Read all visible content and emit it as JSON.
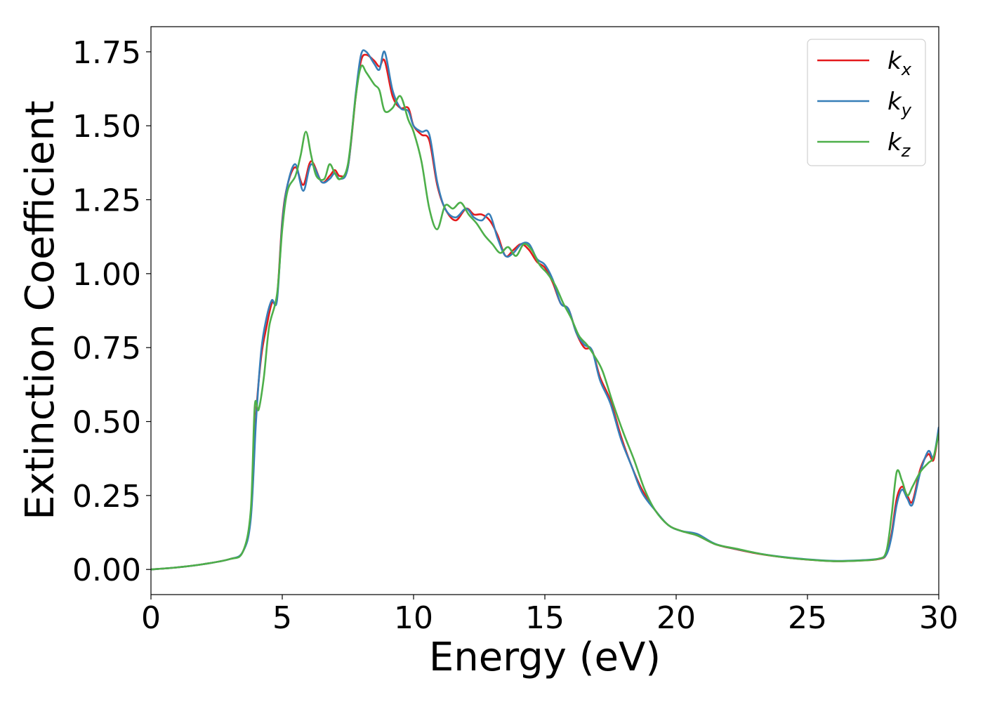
{
  "chart_data": {
    "type": "line",
    "title": "",
    "xlabel": "Energy (eV)",
    "ylabel": "Extinction Coefficient",
    "xlim": [
      0,
      30
    ],
    "ylim": [
      -0.085,
      1.835
    ],
    "xticks": [
      0,
      5,
      10,
      15,
      20,
      25,
      30
    ],
    "yticks": [
      0.0,
      0.25,
      0.5,
      0.75,
      1.0,
      1.25,
      1.5,
      1.75
    ],
    "xtick_labels": [
      "0",
      "5",
      "10",
      "15",
      "20",
      "25",
      "30"
    ],
    "ytick_labels": [
      "0.00",
      "0.25",
      "0.50",
      "0.75",
      "1.00",
      "1.25",
      "1.50",
      "1.75"
    ],
    "grid": false,
    "legend_position": "top-right",
    "series": [
      {
        "name": "k_x",
        "label_main": "k",
        "label_sub": "x",
        "color": "#e41a1c",
        "x": [
          0,
          1,
          2,
          3,
          3.5,
          3.8,
          4.0,
          4.2,
          4.4,
          4.6,
          4.8,
          5.0,
          5.2,
          5.5,
          5.8,
          6.1,
          6.5,
          6.8,
          7.0,
          7.2,
          7.5,
          7.8,
          8.0,
          8.2,
          8.5,
          8.7,
          8.9,
          9.2,
          9.5,
          9.8,
          10.0,
          10.3,
          10.6,
          10.9,
          11.2,
          11.6,
          12.0,
          12.3,
          12.6,
          12.9,
          13.2,
          13.5,
          13.8,
          14.1,
          14.4,
          14.7,
          15.0,
          15.3,
          15.6,
          15.9,
          16.2,
          16.5,
          16.8,
          17.1,
          17.5,
          17.9,
          18.3,
          18.7,
          19.2,
          19.7,
          20.2,
          20.8,
          21.5,
          22.3,
          23.2,
          24.2,
          25.2,
          26.0,
          27.0,
          27.7,
          28.0,
          28.2,
          28.4,
          28.6,
          28.8,
          29.0,
          29.3,
          29.6,
          29.8,
          30.0
        ],
        "y": [
          0.0,
          0.007,
          0.018,
          0.035,
          0.06,
          0.18,
          0.52,
          0.72,
          0.82,
          0.9,
          0.92,
          1.18,
          1.3,
          1.36,
          1.3,
          1.38,
          1.31,
          1.33,
          1.35,
          1.33,
          1.36,
          1.6,
          1.72,
          1.74,
          1.72,
          1.7,
          1.72,
          1.6,
          1.56,
          1.56,
          1.5,
          1.47,
          1.45,
          1.3,
          1.22,
          1.18,
          1.22,
          1.2,
          1.2,
          1.18,
          1.13,
          1.06,
          1.08,
          1.1,
          1.08,
          1.04,
          1.02,
          0.97,
          0.9,
          0.88,
          0.8,
          0.75,
          0.74,
          0.65,
          0.57,
          0.45,
          0.35,
          0.27,
          0.2,
          0.15,
          0.13,
          0.115,
          0.085,
          0.068,
          0.052,
          0.04,
          0.032,
          0.028,
          0.03,
          0.035,
          0.05,
          0.12,
          0.24,
          0.28,
          0.25,
          0.23,
          0.34,
          0.39,
          0.37,
          0.47
        ]
      },
      {
        "name": "k_y",
        "label_main": "k",
        "label_sub": "y",
        "color": "#377eb8",
        "x": [
          0,
          1,
          2,
          3,
          3.5,
          3.8,
          4.0,
          4.2,
          4.4,
          4.6,
          4.8,
          5.0,
          5.2,
          5.5,
          5.8,
          6.1,
          6.5,
          6.8,
          7.0,
          7.2,
          7.5,
          7.8,
          8.0,
          8.2,
          8.5,
          8.7,
          8.9,
          9.2,
          9.5,
          9.8,
          10.0,
          10.3,
          10.6,
          10.9,
          11.2,
          11.6,
          12.0,
          12.3,
          12.6,
          12.9,
          13.2,
          13.5,
          13.8,
          14.1,
          14.4,
          14.7,
          15.0,
          15.3,
          15.6,
          15.9,
          16.2,
          16.5,
          16.8,
          17.1,
          17.5,
          17.9,
          18.3,
          18.7,
          19.2,
          19.7,
          20.2,
          20.8,
          21.5,
          22.3,
          23.2,
          24.2,
          25.2,
          26.0,
          27.0,
          27.7,
          28.0,
          28.2,
          28.4,
          28.6,
          28.8,
          29.0,
          29.3,
          29.6,
          29.8,
          30.0
        ],
        "y": [
          0.0,
          0.007,
          0.018,
          0.035,
          0.06,
          0.17,
          0.5,
          0.74,
          0.85,
          0.91,
          0.91,
          1.17,
          1.3,
          1.37,
          1.28,
          1.37,
          1.31,
          1.32,
          1.34,
          1.32,
          1.36,
          1.61,
          1.74,
          1.75,
          1.71,
          1.69,
          1.75,
          1.62,
          1.56,
          1.55,
          1.5,
          1.48,
          1.47,
          1.31,
          1.22,
          1.19,
          1.22,
          1.19,
          1.18,
          1.2,
          1.12,
          1.06,
          1.07,
          1.1,
          1.1,
          1.05,
          1.03,
          0.98,
          0.9,
          0.88,
          0.8,
          0.76,
          0.74,
          0.64,
          0.56,
          0.44,
          0.35,
          0.26,
          0.2,
          0.15,
          0.13,
          0.12,
          0.086,
          0.069,
          0.053,
          0.041,
          0.033,
          0.029,
          0.031,
          0.036,
          0.05,
          0.11,
          0.22,
          0.27,
          0.24,
          0.22,
          0.33,
          0.4,
          0.38,
          0.48
        ]
      },
      {
        "name": "k_z",
        "label_main": "k",
        "label_sub": "z",
        "color": "#4daf4a",
        "x": [
          0,
          1,
          2,
          3,
          3.5,
          3.8,
          3.95,
          4.1,
          4.3,
          4.5,
          4.8,
          5.0,
          5.2,
          5.5,
          5.7,
          5.9,
          6.1,
          6.3,
          6.6,
          6.8,
          7.0,
          7.2,
          7.5,
          7.8,
          8.0,
          8.2,
          8.5,
          8.7,
          8.9,
          9.2,
          9.5,
          9.8,
          10.0,
          10.3,
          10.6,
          10.9,
          11.2,
          11.5,
          11.8,
          12.1,
          12.4,
          12.7,
          13.0,
          13.3,
          13.6,
          13.9,
          14.2,
          14.5,
          14.8,
          15.1,
          15.4,
          15.7,
          16.0,
          16.3,
          16.6,
          16.9,
          17.2,
          17.6,
          18.0,
          18.4,
          18.8,
          19.2,
          19.7,
          20.2,
          20.8,
          21.5,
          22.3,
          23.2,
          24.2,
          25.2,
          26.0,
          27.0,
          27.7,
          28.0,
          28.2,
          28.4,
          28.6,
          28.8,
          29.0,
          29.3,
          29.6,
          29.8,
          30.0
        ],
        "y": [
          0.0,
          0.007,
          0.018,
          0.035,
          0.06,
          0.2,
          0.55,
          0.54,
          0.65,
          0.82,
          0.93,
          1.15,
          1.28,
          1.33,
          1.4,
          1.48,
          1.4,
          1.33,
          1.32,
          1.37,
          1.34,
          1.32,
          1.37,
          1.6,
          1.7,
          1.68,
          1.64,
          1.62,
          1.55,
          1.56,
          1.6,
          1.52,
          1.48,
          1.38,
          1.22,
          1.15,
          1.23,
          1.22,
          1.24,
          1.2,
          1.17,
          1.13,
          1.1,
          1.07,
          1.09,
          1.06,
          1.1,
          1.08,
          1.03,
          1.0,
          0.96,
          0.9,
          0.85,
          0.79,
          0.76,
          0.72,
          0.67,
          0.56,
          0.46,
          0.37,
          0.27,
          0.2,
          0.15,
          0.13,
          0.115,
          0.085,
          0.07,
          0.053,
          0.04,
          0.032,
          0.028,
          0.03,
          0.036,
          0.06,
          0.18,
          0.33,
          0.3,
          0.25,
          0.28,
          0.33,
          0.36,
          0.38,
          0.46
        ]
      }
    ]
  }
}
